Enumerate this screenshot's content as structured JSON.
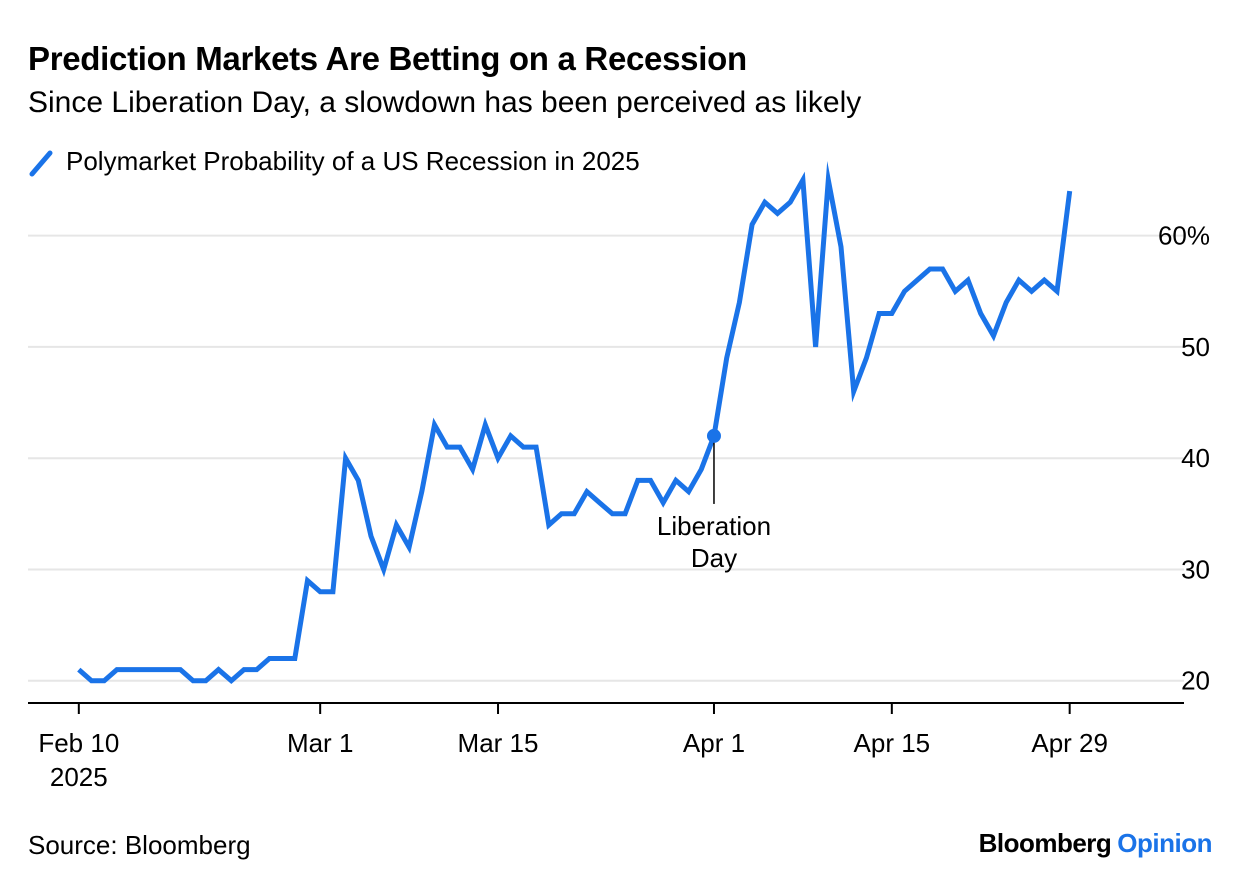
{
  "title": "Prediction Markets Are Betting on a Recession",
  "subtitle": "Since Liberation Day, a slowdown has been perceived as likely",
  "source": "Source: Bloomberg",
  "brand": {
    "name": "Bloomberg",
    "section": "Opinion"
  },
  "colors": {
    "line": "#1a73e8",
    "grid": "#e6e6e6",
    "axis": "#000000",
    "brand_accent": "#1a73e8"
  },
  "chart_data": {
    "type": "line",
    "title": "Prediction Markets Are Betting on a Recession",
    "subtitle": "Since Liberation Day, a slowdown has been perceived as likely",
    "legend_position": "top-left",
    "grid": true,
    "series": [
      {
        "name": "Polymarket Probability of a US Recession in 2025",
        "x": [
          "2025-02-10",
          "2025-02-11",
          "2025-02-12",
          "2025-02-13",
          "2025-02-14",
          "2025-02-15",
          "2025-02-16",
          "2025-02-17",
          "2025-02-18",
          "2025-02-19",
          "2025-02-20",
          "2025-02-21",
          "2025-02-22",
          "2025-02-23",
          "2025-02-24",
          "2025-02-25",
          "2025-02-26",
          "2025-02-27",
          "2025-02-28",
          "2025-03-01",
          "2025-03-02",
          "2025-03-03",
          "2025-03-04",
          "2025-03-05",
          "2025-03-06",
          "2025-03-07",
          "2025-03-08",
          "2025-03-09",
          "2025-03-10",
          "2025-03-11",
          "2025-03-12",
          "2025-03-13",
          "2025-03-14",
          "2025-03-15",
          "2025-03-16",
          "2025-03-17",
          "2025-03-18",
          "2025-03-19",
          "2025-03-20",
          "2025-03-21",
          "2025-03-22",
          "2025-03-23",
          "2025-03-24",
          "2025-03-25",
          "2025-03-26",
          "2025-03-27",
          "2025-03-28",
          "2025-03-29",
          "2025-03-30",
          "2025-03-31",
          "2025-04-01",
          "2025-04-02",
          "2025-04-03",
          "2025-04-04",
          "2025-04-05",
          "2025-04-06",
          "2025-04-07",
          "2025-04-08",
          "2025-04-09",
          "2025-04-10",
          "2025-04-11",
          "2025-04-12",
          "2025-04-13",
          "2025-04-14",
          "2025-04-15",
          "2025-04-16",
          "2025-04-17",
          "2025-04-18",
          "2025-04-19",
          "2025-04-20",
          "2025-04-21",
          "2025-04-22",
          "2025-04-23",
          "2025-04-24",
          "2025-04-25",
          "2025-04-26",
          "2025-04-27",
          "2025-04-28",
          "2025-04-29"
        ],
        "values": [
          21,
          20,
          20,
          21,
          21,
          21,
          21,
          21,
          21,
          20,
          20,
          21,
          20,
          21,
          21,
          22,
          22,
          22,
          29,
          28,
          28,
          40,
          38,
          33,
          30,
          34,
          32,
          37,
          43,
          41,
          41,
          39,
          43,
          40,
          42,
          41,
          41,
          34,
          35,
          35,
          37,
          36,
          35,
          35,
          38,
          38,
          36,
          38,
          37,
          39,
          42,
          49,
          54,
          61,
          63,
          62,
          63,
          65,
          50,
          65,
          59,
          46,
          49,
          53,
          53,
          55,
          56,
          57,
          57,
          55,
          56,
          53,
          51,
          54,
          56,
          55,
          56,
          55,
          64
        ]
      }
    ],
    "x_ticks": [
      {
        "date": "2025-02-10",
        "label": "Feb 10",
        "sublabel": "2025"
      },
      {
        "date": "2025-03-01",
        "label": "Mar 1"
      },
      {
        "date": "2025-03-15",
        "label": "Mar 15"
      },
      {
        "date": "2025-04-01",
        "label": "Apr 1"
      },
      {
        "date": "2025-04-15",
        "label": "Apr 15"
      },
      {
        "date": "2025-04-29",
        "label": "Apr 29"
      }
    ],
    "y_ticks": [
      {
        "value": 20,
        "label": "20"
      },
      {
        "value": 30,
        "label": "30"
      },
      {
        "value": 40,
        "label": "40"
      },
      {
        "value": 50,
        "label": "50"
      },
      {
        "value": 60,
        "label": "60%"
      }
    ],
    "xlim": [
      "2025-02-06",
      "2025-05-08"
    ],
    "ylim": [
      18,
      65
    ],
    "annotations": [
      {
        "date": "2025-04-01",
        "value": 42,
        "lines": [
          "Liberation",
          "Day"
        ]
      }
    ]
  }
}
